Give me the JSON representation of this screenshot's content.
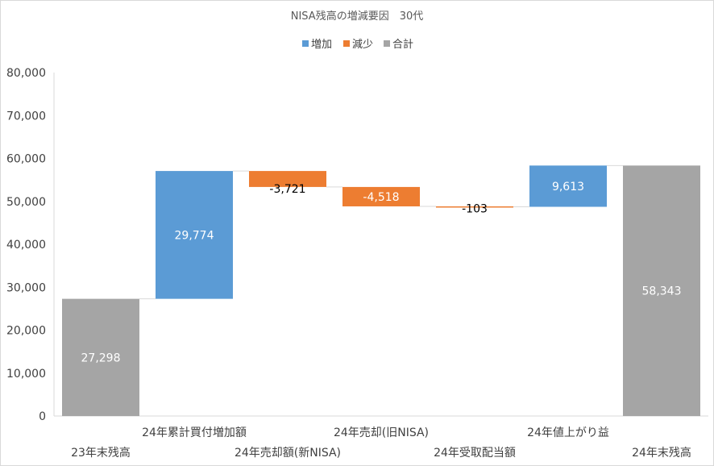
{
  "chart_data": {
    "type": "bar",
    "subtype": "waterfall",
    "title": "NISA残高の増減要因　30代",
    "legend": {
      "position": "top",
      "entries": [
        {
          "name": "増加",
          "color": "#5b9bd5"
        },
        {
          "name": "減少",
          "color": "#ed7d31"
        },
        {
          "name": "合計",
          "color": "#a5a5a5"
        }
      ]
    },
    "ylim": [
      0,
      80000
    ],
    "yticks": [
      "0",
      "10,000",
      "20,000",
      "30,000",
      "40,000",
      "50,000",
      "60,000",
      "70,000",
      "80,000"
    ],
    "grid": false,
    "categories": [
      "23年末残高",
      "24年累計買付増加額",
      "24年売却額(新NISA)",
      "24年売却(旧NISA)",
      "24年受取配当額",
      "24年値上がり益",
      "24年末残高"
    ],
    "bars": [
      {
        "category": "23年末残高",
        "kind": "合計",
        "start": 0,
        "end": 27298,
        "label": "27,298"
      },
      {
        "category": "24年累計買付増加額",
        "kind": "増加",
        "start": 27298,
        "end": 57072,
        "label": "29,774"
      },
      {
        "category": "24年売却額(新NISA)",
        "kind": "減少",
        "start": 57072,
        "end": 53351,
        "label": "-3,721"
      },
      {
        "category": "24年売却(旧NISA)",
        "kind": "減少",
        "start": 53351,
        "end": 48833,
        "label": "-4,518"
      },
      {
        "category": "24年受取配当額",
        "kind": "減少",
        "start": 48833,
        "end": 48730,
        "label": "-103"
      },
      {
        "category": "24年値上がり益",
        "kind": "増加",
        "start": 48730,
        "end": 58343,
        "label": "9,613"
      },
      {
        "category": "24年末残高",
        "kind": "合計",
        "start": 0,
        "end": 58343,
        "label": "58,343"
      }
    ]
  }
}
